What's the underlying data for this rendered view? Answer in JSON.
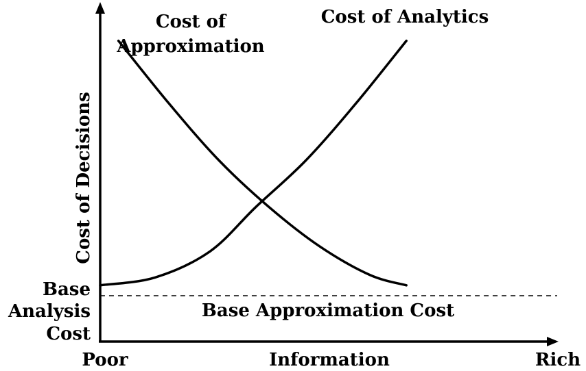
{
  "chart_data": {
    "type": "line",
    "title": "",
    "ylabel": "Cost of Decisions",
    "xlabel": "Information",
    "x_tick_labels": [
      "Poor",
      "Information",
      "Rich"
    ],
    "y_baseline_label": [
      "Base",
      "Analysis",
      "Cost"
    ],
    "xlim": [
      0,
      1
    ],
    "ylim": [
      0,
      1
    ],
    "axis_values_printed": false,
    "grid": false,
    "series": [
      {
        "name": "Cost of Approximation",
        "name_lines": [
          "Cost of",
          "Approximation"
        ],
        "style": "solid",
        "x": [
          0.04,
          0.15,
          0.26,
          0.37,
          0.48,
          0.59,
          0.67
        ],
        "y": [
          0.98,
          0.74,
          0.52,
          0.34,
          0.19,
          0.08,
          0.04
        ]
      },
      {
        "name": "Cost of Analytics",
        "style": "solid",
        "x": [
          0.0,
          0.12,
          0.24,
          0.34,
          0.45,
          0.56,
          0.67
        ],
        "y": [
          0.04,
          0.07,
          0.17,
          0.34,
          0.52,
          0.74,
          0.98
        ]
      },
      {
        "name": "Base Approximation Cost",
        "style": "dashed",
        "x": [
          0.0,
          1.0
        ],
        "y": [
          0.0,
          0.0
        ]
      }
    ]
  }
}
